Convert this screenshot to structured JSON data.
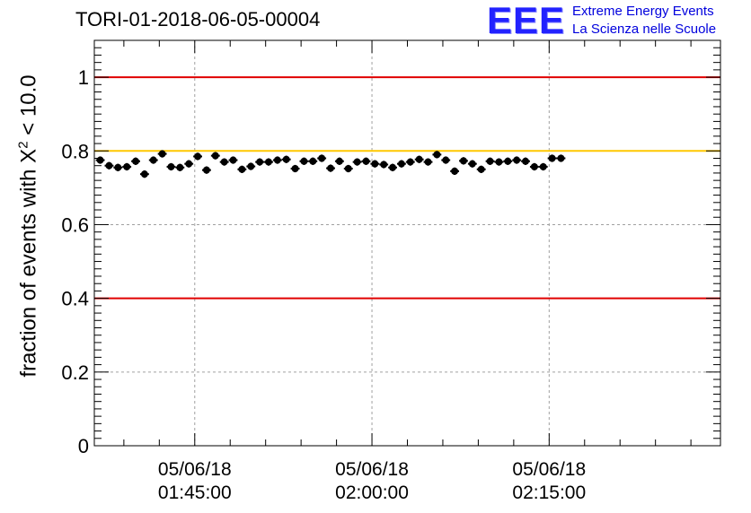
{
  "title": "TORI-01-2018-06-05-00004",
  "logo": {
    "mark": "EEE",
    "line1": "Extreme Energy Events",
    "line2": "La Scienza nelle Scuole"
  },
  "colors": {
    "threshold_red": "#e00000",
    "reference_gold": "#ffc800",
    "grid": "#a0a0a0",
    "marker": "#000000",
    "logo_blue": "#2222ff"
  },
  "chart_data": {
    "type": "scatter",
    "title": "TORI-01-2018-06-05-00004",
    "ylabel": {
      "prefix": "fraction of events with ",
      "chi": "X",
      "sup": "2",
      "suffix": " < 10.0"
    },
    "xlabel": "",
    "ylim": [
      0,
      1.1
    ],
    "yticks": [
      "0",
      "0.2",
      "0.4",
      "0.6",
      "0.8",
      "1"
    ],
    "xlim_minutes": [
      -8.5,
      44.5
    ],
    "xticks": [
      {
        "minute": 0,
        "date": "05/06/18",
        "time": "01:45:00"
      },
      {
        "minute": 15,
        "date": "05/06/18",
        "time": "02:00:00"
      },
      {
        "minute": 30,
        "date": "05/06/18",
        "time": "02:15:00"
      }
    ],
    "x_unit": "minutes after 01:45:00 on 05/06/18",
    "horizontal_lines": [
      {
        "y": 1.0,
        "color": "threshold_red"
      },
      {
        "y": 0.8,
        "color": "reference_gold"
      },
      {
        "y": 0.4,
        "color": "threshold_red"
      }
    ],
    "grid": true,
    "series": [
      {
        "name": "fraction",
        "x_start_minute": -8.0,
        "x_step_minutes": 0.75,
        "x_error_minutes": 0.375,
        "y_error": 0.01,
        "values": [
          0.775,
          0.76,
          0.755,
          0.757,
          0.772,
          0.737,
          0.775,
          0.792,
          0.757,
          0.755,
          0.765,
          0.785,
          0.748,
          0.787,
          0.77,
          0.775,
          0.75,
          0.758,
          0.77,
          0.77,
          0.775,
          0.777,
          0.752,
          0.772,
          0.772,
          0.78,
          0.753,
          0.772,
          0.752,
          0.77,
          0.772,
          0.765,
          0.763,
          0.755,
          0.765,
          0.77,
          0.777,
          0.77,
          0.79,
          0.775,
          0.745,
          0.773,
          0.765,
          0.75,
          0.772,
          0.77,
          0.772,
          0.775,
          0.772,
          0.757,
          0.757,
          0.78,
          0.78
        ]
      }
    ]
  }
}
